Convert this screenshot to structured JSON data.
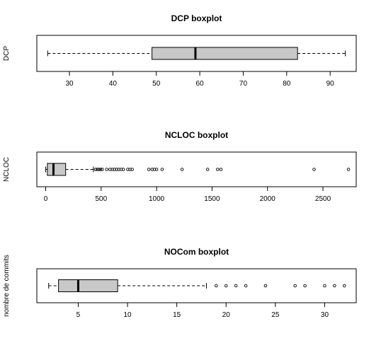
{
  "chart_data": [
    {
      "type": "boxplot",
      "orientation": "horizontal",
      "title": "DCP boxplot",
      "ylabel": "DCP",
      "xlim": [
        22.5,
        96
      ],
      "xticks": [
        30,
        40,
        50,
        60,
        70,
        80,
        90
      ],
      "stats": {
        "min": 25,
        "q1": 49,
        "median": 59,
        "q3": 82.5,
        "max": 93.5
      },
      "outliers": []
    },
    {
      "type": "boxplot",
      "orientation": "horizontal",
      "title": "NCLOC boxplot",
      "ylabel": "NCLOC",
      "xlim": [
        -80,
        2800
      ],
      "xticks": [
        0,
        500,
        1000,
        1500,
        2000,
        2500
      ],
      "stats": {
        "min": 0,
        "q1": 15,
        "median": 70,
        "q3": 180,
        "max": 430
      },
      "outliers": [
        450,
        465,
        480,
        495,
        510,
        550,
        580,
        600,
        620,
        640,
        660,
        680,
        700,
        740,
        760,
        780,
        930,
        960,
        980,
        1000,
        1050,
        1230,
        1460,
        1550,
        1580,
        2420,
        2730
      ]
    },
    {
      "type": "boxplot",
      "orientation": "horizontal",
      "title": "NOCom boxplot",
      "ylabel": "nombre de commits",
      "xlim": [
        0.8,
        33.2
      ],
      "xticks": [
        5,
        10,
        15,
        20,
        25,
        30
      ],
      "stats": {
        "min": 2,
        "q1": 3,
        "median": 5,
        "q3": 9,
        "max": 18
      },
      "outliers": [
        19,
        20,
        21,
        22,
        24,
        27,
        28,
        30,
        31,
        32
      ]
    }
  ]
}
